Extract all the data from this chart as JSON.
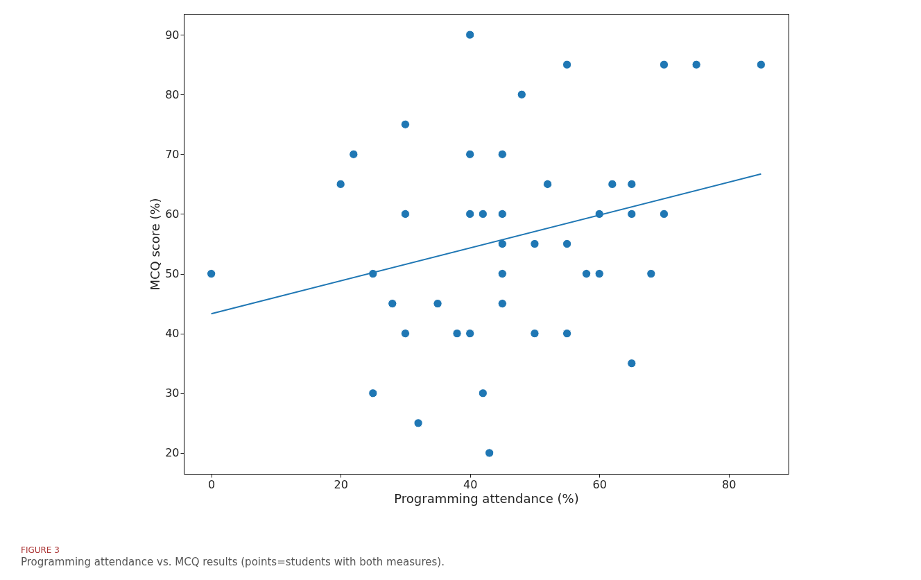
{
  "chart_data": {
    "type": "scatter",
    "xlabel": "Programming attendance (%)",
    "ylabel": "MCQ score (%)",
    "xlim": [
      -4.25,
      89.25
    ],
    "ylim": [
      16.5,
      93.5
    ],
    "xticks": [
      0,
      20,
      40,
      60,
      80
    ],
    "yticks": [
      20,
      30,
      40,
      50,
      60,
      70,
      80,
      90
    ],
    "grid": false,
    "marker": "circle",
    "series": [
      {
        "color": "#1f77b4",
        "x": [
          0,
          20,
          22,
          25,
          25,
          28,
          30,
          30,
          30,
          32,
          35,
          38,
          40,
          40,
          40,
          40,
          42,
          42,
          43,
          45,
          45,
          45,
          45,
          45,
          48,
          50,
          50,
          52,
          55,
          55,
          55,
          58,
          60,
          60,
          62,
          65,
          65,
          65,
          68,
          70,
          70,
          75,
          85
        ],
        "values": [
          50,
          65,
          70,
          50,
          30,
          45,
          75,
          60,
          40,
          25,
          45,
          40,
          90,
          70,
          60,
          40,
          60,
          30,
          20,
          70,
          60,
          55,
          50,
          45,
          80,
          55,
          40,
          65,
          85,
          55,
          40,
          50,
          60,
          50,
          65,
          65,
          60,
          35,
          50,
          85,
          60,
          85,
          85
        ]
      },
      {
        "type": "line",
        "color": "#1f77b4",
        "line_style": "solid",
        "marker": "none",
        "x": [
          0,
          85
        ],
        "values": [
          43.3,
          66.7
        ]
      }
    ],
    "annotations": [
      "FIGURE 3",
      "Programming attendance vs. MCQ results (points=students with both measures)."
    ]
  }
}
